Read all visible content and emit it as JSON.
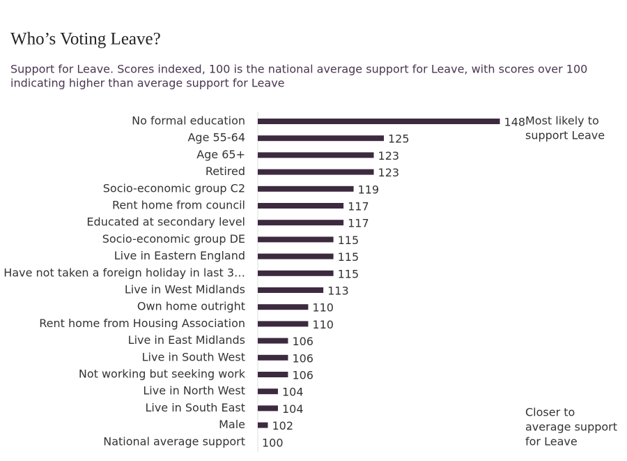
{
  "chart_data": {
    "type": "bar",
    "orientation": "horizontal",
    "title": "Who’s Voting Leave?",
    "subtitle": [
      "Support for Leave. Scores indexed, 100 is the national average support for Leave, with scores over 100",
      "indicating higher than average support for Leave"
    ],
    "categories": [
      "No formal education",
      "Age 55-64",
      "Age 65+",
      "Retired",
      "Socio-economic group C2",
      "Rent home from council",
      "Educated at secondary level",
      "Socio-economic group DE",
      "Live in Eastern England",
      "Have not taken a foreign holiday in last 3…",
      "Live in West Midlands",
      "Own home outright",
      "Rent home from Housing Association",
      "Live in East Midlands",
      "Live in South West",
      "Not working but seeking work",
      "Live in North West",
      "Live in South East",
      "Male",
      "National average support"
    ],
    "values": [
      148,
      125,
      123,
      123,
      119,
      117,
      117,
      115,
      115,
      115,
      113,
      110,
      110,
      106,
      106,
      106,
      104,
      104,
      102,
      100
    ],
    "color": "#3d2a3f",
    "xlim": [
      100,
      150
    ],
    "annotations": [
      {
        "lines": [
          "Most likely to",
          "support Leave"
        ]
      },
      {
        "lines": [
          "Closer to",
          "average support",
          "for Leave"
        ]
      }
    ]
  }
}
